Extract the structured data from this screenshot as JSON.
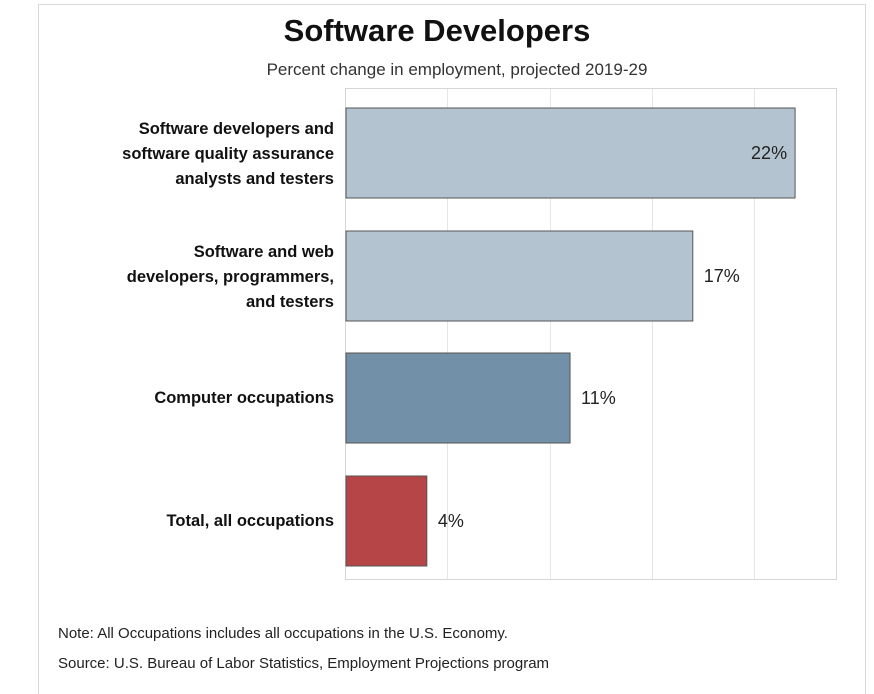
{
  "chart_data": {
    "type": "bar",
    "orientation": "horizontal",
    "title": "Software Developers",
    "subtitle": "Percent change in employment, projected 2019-29",
    "categories": [
      "Software developers and software quality assurance analysts and testers",
      "Software and web developers, programmers, and testers",
      "Computer occupations",
      "Total, all occupations"
    ],
    "values": [
      22,
      17,
      11,
      4
    ],
    "value_labels": [
      "22%",
      "17%",
      "11%",
      "4%"
    ],
    "bar_colors": [
      "#b3c3cf",
      "#b3c3cf",
      "#7290a8",
      "#b54546"
    ],
    "xlim": [
      0,
      24
    ],
    "grid": true,
    "legend": "none"
  },
  "labels": {
    "cat0": "Software developers and\nsoftware quality assurance\nanalysts and testers",
    "cat1": "Software and web\ndevelopers, programmers,\nand testers",
    "cat2": "Computer occupations",
    "cat3": "Total, all occupations"
  },
  "notes": {
    "note": "Note: All Occupations includes all occupations in the U.S. Economy.",
    "source": "Source: U.S. Bureau of Labor Statistics, Employment Projections program"
  }
}
